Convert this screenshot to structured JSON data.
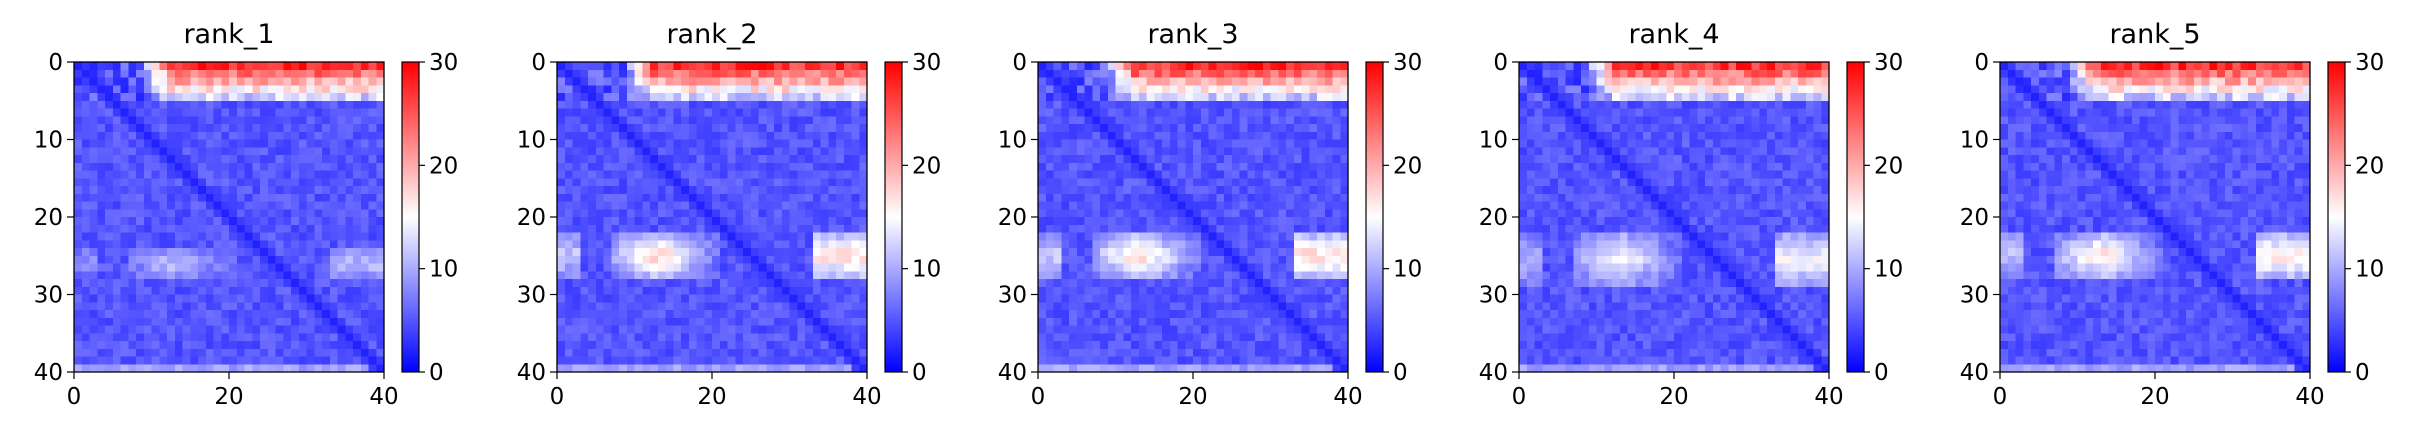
{
  "chart_data": [
    {
      "type": "heatmap",
      "title": "rank_1",
      "x_range": [
        0,
        40
      ],
      "y_range": [
        0,
        40
      ],
      "x_ticks": [
        "0",
        "20",
        "40"
      ],
      "y_ticks": [
        "0",
        "10",
        "20",
        "30",
        "40"
      ],
      "colorbar": {
        "range": [
          0,
          30
        ],
        "ticks": [
          "0",
          "10",
          "20",
          "30"
        ],
        "colormap": "bwr"
      },
      "bands": [
        {
          "y_start": 24,
          "y_end": 27,
          "peak_value": 12
        }
      ],
      "top_rows_value": 27,
      "diagonal_value": 2,
      "background_value": 5
    },
    {
      "type": "heatmap",
      "title": "rank_2",
      "x_range": [
        0,
        40
      ],
      "y_range": [
        0,
        40
      ],
      "x_ticks": [
        "0",
        "20",
        "40"
      ],
      "y_ticks": [
        "0",
        "10",
        "20",
        "30",
        "40"
      ],
      "colorbar": {
        "range": [
          0,
          30
        ],
        "ticks": [
          "0",
          "10",
          "20",
          "30"
        ],
        "colormap": "bwr"
      },
      "bands": [
        {
          "y_start": 22,
          "y_end": 27,
          "peak_value": 19
        }
      ],
      "top_rows_value": 27,
      "diagonal_value": 2,
      "background_value": 5
    },
    {
      "type": "heatmap",
      "title": "rank_3",
      "x_range": [
        0,
        40
      ],
      "y_range": [
        0,
        40
      ],
      "x_ticks": [
        "0",
        "20",
        "40"
      ],
      "y_ticks": [
        "0",
        "10",
        "20",
        "30",
        "40"
      ],
      "colorbar": {
        "range": [
          0,
          30
        ],
        "ticks": [
          "0",
          "10",
          "20",
          "30"
        ],
        "colormap": "bwr"
      },
      "bands": [
        {
          "y_start": 22,
          "y_end": 27,
          "peak_value": 19
        }
      ],
      "top_rows_value": 27,
      "diagonal_value": 2,
      "background_value": 5
    },
    {
      "type": "heatmap",
      "title": "rank_4",
      "x_range": [
        0,
        40
      ],
      "y_range": [
        0,
        40
      ],
      "x_ticks": [
        "0",
        "20",
        "40"
      ],
      "y_ticks": [
        "0",
        "10",
        "20",
        "30",
        "40"
      ],
      "colorbar": {
        "range": [
          0,
          30
        ],
        "ticks": [
          "0",
          "10",
          "20",
          "30"
        ],
        "colormap": "bwr"
      },
      "bands": [
        {
          "y_start": 22,
          "y_end": 28,
          "peak_value": 16
        }
      ],
      "top_rows_value": 27,
      "diagonal_value": 2,
      "background_value": 5
    },
    {
      "type": "heatmap",
      "title": "rank_5",
      "x_range": [
        0,
        40
      ],
      "y_range": [
        0,
        40
      ],
      "x_ticks": [
        "0",
        "20",
        "40"
      ],
      "y_ticks": [
        "0",
        "10",
        "20",
        "30",
        "40"
      ],
      "colorbar": {
        "range": [
          0,
          30
        ],
        "ticks": [
          "0",
          "10",
          "20",
          "30"
        ],
        "colormap": "bwr"
      },
      "bands": [
        {
          "y_start": 22,
          "y_end": 27,
          "peak_value": 18
        }
      ],
      "top_rows_value": 27,
      "diagonal_value": 2,
      "background_value": 5
    }
  ]
}
